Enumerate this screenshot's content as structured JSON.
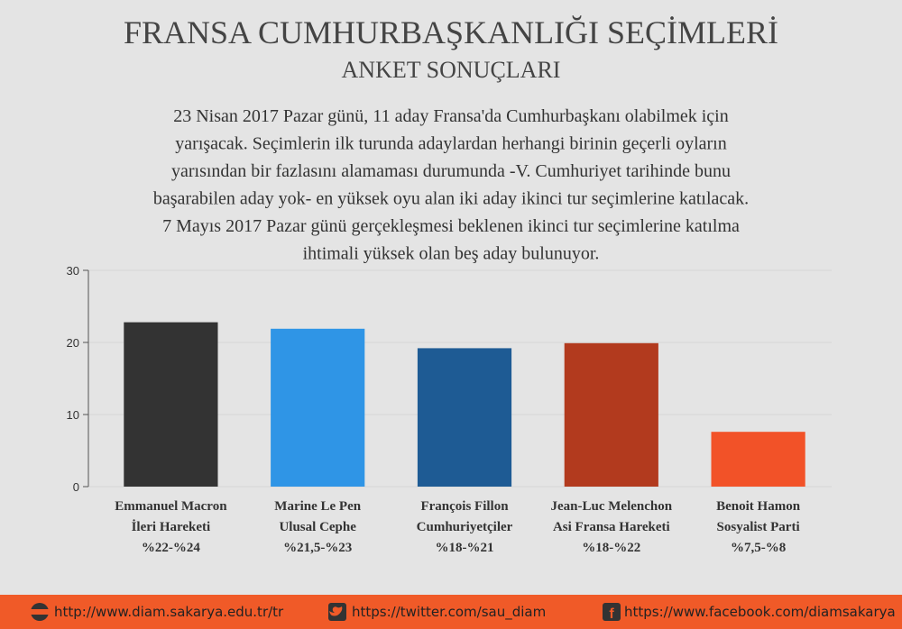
{
  "chart_data": {
    "type": "bar",
    "title": "FRANSA CUMHURBAŞKANLIĞI SEÇİMLERİ",
    "subtitle": "ANKET SONUÇLARI",
    "description": [
      "23 Nisan 2017 Pazar günü, 11 aday Fransa'da Cumhurbaşkanı olabilmek için",
      "yarışacak. Seçimlerin ilk turunda adaylardan herhangi birinin geçerli oyların",
      "yarısından bir fazlasını alamaması durumunda -V. Cumhuriyet tarihinde bunu",
      "başarabilen aday yok- en yüksek oyu alan iki aday ikinci tur seçimlerine katılacak.",
      "7 Mayıs 2017 Pazar günü gerçekleşmesi beklenen ikinci tur seçimlerine katılma",
      "ihtimali yüksek olan beş aday bulunuyor."
    ],
    "categories": [
      [
        "Emmanuel Macron",
        "İleri Hareketi",
        "%22-%24"
      ],
      [
        "Marine Le Pen",
        "Ulusal Cephe",
        "%21,5-%23"
      ],
      [
        "François Fillon",
        "Cumhuriyetçiler",
        "%18-%21"
      ],
      [
        "Jean-Luc Melenchon",
        "Asi Fransa Hareketi",
        "%18-%22"
      ],
      [
        "Benoit Hamon",
        "Sosyalist Parti",
        "%7,5-%8"
      ]
    ],
    "values": [
      22.8,
      21.9,
      19.2,
      19.9,
      7.6
    ],
    "colors": [
      "#333333",
      "#2f95e6",
      "#1e5b94",
      "#b23a1e",
      "#f25228"
    ],
    "ylim": [
      0,
      30
    ],
    "yticks": [
      0,
      10,
      20,
      30
    ],
    "grid": true
  },
  "footer": {
    "links": [
      "http://www.diam.sakarya.edu.tr/tr",
      "https://twitter.com/sau_diam",
      "https://www.facebook.com/diamsakarya"
    ]
  }
}
